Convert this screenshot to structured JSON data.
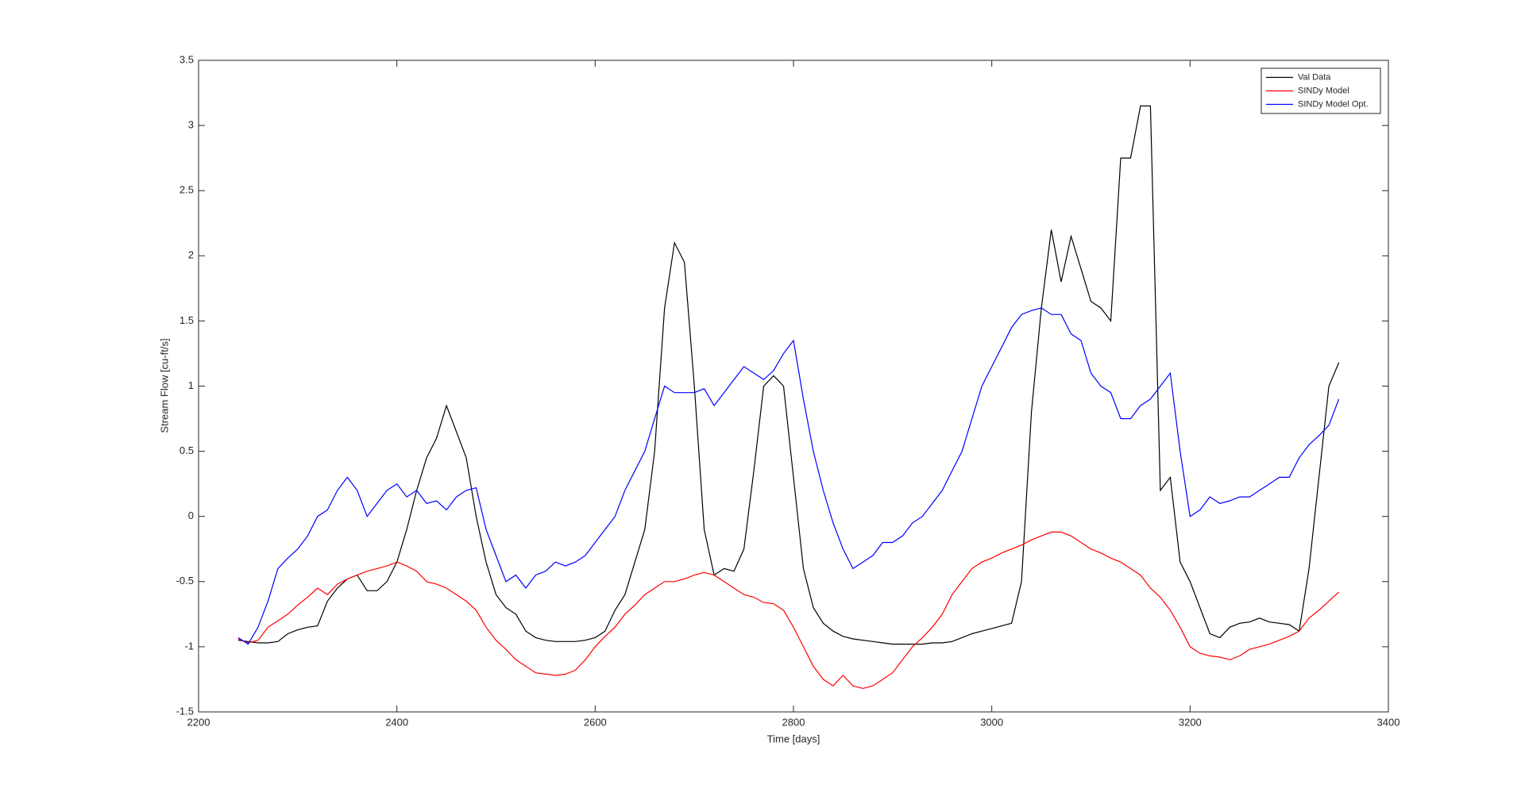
{
  "chart_data": {
    "type": "line",
    "xlabel": "Time [days]",
    "ylabel": "Stream Flow [cu-ft/s]",
    "x": [
      2240,
      2250,
      2260,
      2270,
      2280,
      2290,
      2300,
      2310,
      2320,
      2330,
      2340,
      2350,
      2360,
      2370,
      2380,
      2390,
      2400,
      2410,
      2420,
      2430,
      2440,
      2450,
      2460,
      2470,
      2480,
      2490,
      2500,
      2510,
      2520,
      2530,
      2540,
      2550,
      2560,
      2570,
      2580,
      2590,
      2600,
      2610,
      2620,
      2630,
      2640,
      2650,
      2660,
      2670,
      2680,
      2690,
      2700,
      2710,
      2720,
      2730,
      2740,
      2750,
      2760,
      2770,
      2780,
      2790,
      2800,
      2810,
      2820,
      2830,
      2840,
      2850,
      2860,
      2870,
      2880,
      2890,
      2900,
      2910,
      2920,
      2930,
      2940,
      2950,
      2960,
      2970,
      2980,
      2990,
      3000,
      3010,
      3020,
      3030,
      3040,
      3050,
      3060,
      3070,
      3080,
      3090,
      3100,
      3110,
      3120,
      3130,
      3140,
      3150,
      3160,
      3170,
      3180,
      3190,
      3200,
      3210,
      3220,
      3230,
      3240,
      3250,
      3260,
      3270,
      3280,
      3290,
      3300,
      3310,
      3320,
      3330,
      3340,
      3350
    ],
    "series": [
      {
        "name": "Val Data",
        "color": "#000000",
        "values": [
          -0.95,
          -0.96,
          -0.97,
          -0.97,
          -0.96,
          -0.9,
          -0.87,
          -0.85,
          -0.84,
          -0.65,
          -0.55,
          -0.48,
          -0.45,
          -0.57,
          -0.57,
          -0.5,
          -0.35,
          -0.1,
          0.2,
          0.45,
          0.6,
          0.85,
          0.65,
          0.45,
          0.0,
          -0.35,
          -0.6,
          -0.7,
          -0.75,
          -0.88,
          -0.93,
          -0.95,
          -0.96,
          -0.96,
          -0.96,
          -0.95,
          -0.93,
          -0.88,
          -0.72,
          -0.6,
          -0.35,
          -0.1,
          0.5,
          1.6,
          2.1,
          1.95,
          1.0,
          -0.1,
          -0.45,
          -0.4,
          -0.42,
          -0.25,
          0.35,
          1.0,
          1.08,
          1.0,
          0.3,
          -0.4,
          -0.7,
          -0.82,
          -0.88,
          -0.92,
          -0.94,
          -0.95,
          -0.96,
          -0.97,
          -0.98,
          -0.98,
          -0.98,
          -0.98,
          -0.97,
          -0.97,
          -0.96,
          -0.93,
          -0.9,
          -0.88,
          -0.86,
          -0.84,
          -0.82,
          -0.5,
          0.8,
          1.6,
          2.2,
          1.8,
          2.15,
          1.9,
          1.65,
          1.6,
          1.5,
          2.75,
          2.75,
          3.15,
          3.15,
          0.2,
          0.3,
          -0.35,
          -0.5,
          -0.7,
          -0.9,
          -0.93,
          -0.85,
          -0.82,
          -0.81,
          -0.78,
          -0.81,
          -0.82,
          -0.83,
          -0.88,
          -0.4,
          0.3,
          1.0,
          1.18
        ]
      },
      {
        "name": "SINDy Model",
        "color": "#ff0000",
        "values": [
          -0.94,
          -0.97,
          -0.95,
          -0.85,
          -0.8,
          -0.75,
          -0.68,
          -0.62,
          -0.55,
          -0.6,
          -0.52,
          -0.48,
          -0.45,
          -0.42,
          -0.4,
          -0.38,
          -0.35,
          -0.38,
          -0.42,
          -0.5,
          -0.52,
          -0.55,
          -0.6,
          -0.65,
          -0.72,
          -0.85,
          -0.95,
          -1.02,
          -1.1,
          -1.15,
          -1.2,
          -1.21,
          -1.22,
          -1.21,
          -1.18,
          -1.1,
          -1.0,
          -0.92,
          -0.85,
          -0.75,
          -0.68,
          -0.6,
          -0.55,
          -0.5,
          -0.5,
          -0.48,
          -0.45,
          -0.43,
          -0.45,
          -0.5,
          -0.55,
          -0.6,
          -0.62,
          -0.66,
          -0.67,
          -0.72,
          -0.85,
          -1.0,
          -1.15,
          -1.25,
          -1.3,
          -1.22,
          -1.3,
          -1.32,
          -1.3,
          -1.25,
          -1.2,
          -1.1,
          -1.0,
          -0.93,
          -0.85,
          -0.75,
          -0.6,
          -0.5,
          -0.4,
          -0.35,
          -0.32,
          -0.28,
          -0.25,
          -0.22,
          -0.18,
          -0.15,
          -0.12,
          -0.12,
          -0.15,
          -0.2,
          -0.25,
          -0.28,
          -0.32,
          -0.35,
          -0.4,
          -0.45,
          -0.55,
          -0.62,
          -0.72,
          -0.85,
          -1.0,
          -1.05,
          -1.07,
          -1.08,
          -1.1,
          -1.07,
          -1.02,
          -1.0,
          -0.98,
          -0.95,
          -0.92,
          -0.88,
          -0.78,
          -0.72,
          -0.65,
          -0.58
        ]
      },
      {
        "name": "SINDy Model Opt.",
        "color": "#0000ff",
        "values": [
          -0.93,
          -0.98,
          -0.85,
          -0.65,
          -0.4,
          -0.32,
          -0.25,
          -0.15,
          0.0,
          0.05,
          0.2,
          0.3,
          0.2,
          0.0,
          0.1,
          0.2,
          0.25,
          0.15,
          0.2,
          0.1,
          0.12,
          0.05,
          0.15,
          0.2,
          0.22,
          -0.1,
          -0.3,
          -0.5,
          -0.45,
          -0.55,
          -0.45,
          -0.42,
          -0.35,
          -0.38,
          -0.35,
          -0.3,
          -0.2,
          -0.1,
          0.0,
          0.2,
          0.35,
          0.5,
          0.75,
          1.0,
          0.95,
          0.95,
          0.95,
          0.98,
          0.85,
          0.95,
          1.05,
          1.15,
          1.1,
          1.05,
          1.12,
          1.25,
          1.35,
          0.9,
          0.5,
          0.2,
          -0.05,
          -0.25,
          -0.4,
          -0.35,
          -0.3,
          -0.2,
          -0.2,
          -0.15,
          -0.05,
          0.0,
          0.1,
          0.2,
          0.35,
          0.5,
          0.75,
          1.0,
          1.15,
          1.3,
          1.45,
          1.55,
          1.58,
          1.6,
          1.55,
          1.55,
          1.4,
          1.35,
          1.1,
          1.0,
          0.95,
          0.75,
          0.75,
          0.85,
          0.9,
          1.0,
          1.1,
          0.5,
          0.0,
          0.05,
          0.15,
          0.1,
          0.12,
          0.15,
          0.15,
          0.2,
          0.25,
          0.3,
          0.3,
          0.45,
          0.55,
          0.62,
          0.7,
          0.9
        ]
      }
    ],
    "xlim": [
      2200,
      3400
    ],
    "xticks": [
      2200,
      2400,
      2600,
      2800,
      3000,
      3200,
      3400
    ],
    "ylim": [
      -1.5,
      3.5
    ],
    "yticks": [
      -1.5,
      -1,
      -0.5,
      0,
      0.5,
      1,
      1.5,
      2,
      2.5,
      3,
      3.5
    ],
    "grid": false,
    "legend": "northeast"
  }
}
